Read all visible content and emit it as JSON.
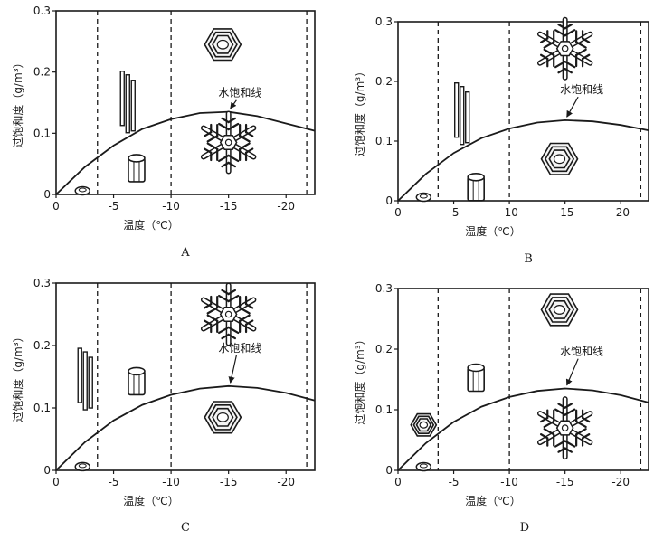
{
  "figure": {
    "colors": {
      "ink": "#1a1a1a",
      "background": "#ffffff"
    }
  },
  "chart_data": [
    {
      "type": "line",
      "panel_label": "A",
      "xlabel": "温度（℃）",
      "ylabel": "过饱和度（g/m³）",
      "x_ticks": [
        "0",
        "-5",
        "-10",
        "-15",
        "-20"
      ],
      "y_ticks": [
        "0",
        "0.1",
        "0.2",
        "0.3"
      ],
      "xlim": [
        0,
        -22.5
      ],
      "ylim": [
        0,
        0.3
      ],
      "dividers": [
        -3.6,
        -10,
        -21.8
      ],
      "series": [
        {
          "name": "水饱和线",
          "x": [
            0,
            -2.5,
            -5,
            -7.5,
            -10,
            -12.5,
            -15,
            -17.5,
            -20,
            -22.5
          ],
          "y": [
            0,
            0.045,
            0.08,
            0.107,
            0.123,
            0.133,
            0.135,
            0.128,
            0.116,
            0.104
          ]
        }
      ],
      "crystals": [
        {
          "shape": "plate-small",
          "x": -2.3,
          "y": 0.006
        },
        {
          "shape": "needles",
          "x": -6.0,
          "y": 0.16
        },
        {
          "shape": "column",
          "x": -7.0,
          "y": 0.04
        },
        {
          "shape": "hex-plate",
          "x": -14.5,
          "y": 0.245
        },
        {
          "shape": "dendrite",
          "x": -15.0,
          "y": 0.085
        }
      ],
      "annotation": {
        "text": "水饱和线",
        "x": -16.0,
        "y": 0.16,
        "arrow_to": [
          -15.0,
          0.136
        ]
      }
    },
    {
      "type": "line",
      "panel_label": "B",
      "xlabel": "温度（℃）",
      "ylabel": "过饱和度（g/m³）",
      "x_ticks": [
        "0",
        "-5",
        "-10",
        "-15",
        "-20"
      ],
      "y_ticks": [
        "0",
        "0.1",
        "0.2",
        "0.3"
      ],
      "xlim": [
        0,
        -22.5
      ],
      "ylim": [
        0,
        0.3
      ],
      "dividers": [
        -3.6,
        -10,
        -21.8
      ],
      "series": [
        {
          "name": "水饱和线",
          "x": [
            0,
            -2.5,
            -5,
            -7.5,
            -10,
            -12.5,
            -15,
            -17.5,
            -20,
            -22.5
          ],
          "y": [
            0,
            0.045,
            0.08,
            0.105,
            0.121,
            0.131,
            0.135,
            0.133,
            0.127,
            0.118
          ]
        }
      ],
      "crystals": [
        {
          "shape": "plate-small",
          "x": -2.3,
          "y": 0.006
        },
        {
          "shape": "needles",
          "x": -5.5,
          "y": 0.155
        },
        {
          "shape": "column",
          "x": -7.0,
          "y": 0.02
        },
        {
          "shape": "dendrite",
          "x": -15.0,
          "y": 0.255
        },
        {
          "shape": "hex-plate",
          "x": -14.5,
          "y": 0.07
        }
      ],
      "annotation": {
        "text": "水饱和线",
        "x": -16.5,
        "y": 0.18,
        "arrow_to": [
          -15.0,
          0.136
        ]
      }
    },
    {
      "type": "line",
      "panel_label": "C",
      "xlabel": "温度（℃）",
      "ylabel": "过饱和度（g/m³）",
      "x_ticks": [
        "0",
        "-5",
        "-10",
        "-15",
        "-20"
      ],
      "y_ticks": [
        "0",
        "0.1",
        "0.2",
        "0.3"
      ],
      "xlim": [
        0,
        -22.5
      ],
      "ylim": [
        0,
        0.3
      ],
      "dividers": [
        -3.6,
        -10,
        -21.8
      ],
      "series": [
        {
          "name": "水饱和线",
          "x": [
            0,
            -2.5,
            -5,
            -7.5,
            -10,
            -12.5,
            -15,
            -17.5,
            -20,
            -22.5
          ],
          "y": [
            0,
            0.045,
            0.08,
            0.105,
            0.121,
            0.131,
            0.135,
            0.132,
            0.124,
            0.112
          ]
        }
      ],
      "crystals": [
        {
          "shape": "plate-small",
          "x": -2.3,
          "y": 0.006
        },
        {
          "shape": "needles",
          "x": -2.3,
          "y": 0.155
        },
        {
          "shape": "column",
          "x": -7.0,
          "y": 0.14
        },
        {
          "shape": "dendrite",
          "x": -15.0,
          "y": 0.25
        },
        {
          "shape": "hex-plate",
          "x": -14.5,
          "y": 0.085
        }
      ],
      "annotation": {
        "text": "水饱和线",
        "x": -16.0,
        "y": 0.19,
        "arrow_to": [
          -15.0,
          0.136
        ]
      }
    },
    {
      "type": "line",
      "panel_label": "D",
      "xlabel": "温度（℃）",
      "ylabel": "过饱和度（g/m³）",
      "x_ticks": [
        "0",
        "-5",
        "-10",
        "-15",
        "-20"
      ],
      "y_ticks": [
        "0",
        "0.1",
        "0.2",
        "0.3"
      ],
      "xlim": [
        0,
        -22.5
      ],
      "ylim": [
        0,
        0.3
      ],
      "dividers": [
        -3.6,
        -10,
        -21.8
      ],
      "series": [
        {
          "name": "水饱和线",
          "x": [
            0,
            -2.5,
            -5,
            -7.5,
            -10,
            -12.5,
            -15,
            -17.5,
            -20,
            -22.5
          ],
          "y": [
            0,
            0.045,
            0.08,
            0.105,
            0.121,
            0.131,
            0.135,
            0.132,
            0.124,
            0.112
          ]
        }
      ],
      "crystals": [
        {
          "shape": "plate-small",
          "x": -2.3,
          "y": 0.006
        },
        {
          "shape": "hex-plate-small",
          "x": -2.3,
          "y": 0.075
        },
        {
          "shape": "column",
          "x": -7.0,
          "y": 0.15
        },
        {
          "shape": "hex-plate",
          "x": -14.5,
          "y": 0.265
        },
        {
          "shape": "dendrite",
          "x": -15.0,
          "y": 0.07
        }
      ],
      "annotation": {
        "text": "水饱和线",
        "x": -16.5,
        "y": 0.19,
        "arrow_to": [
          -15.0,
          0.136
        ]
      }
    }
  ]
}
